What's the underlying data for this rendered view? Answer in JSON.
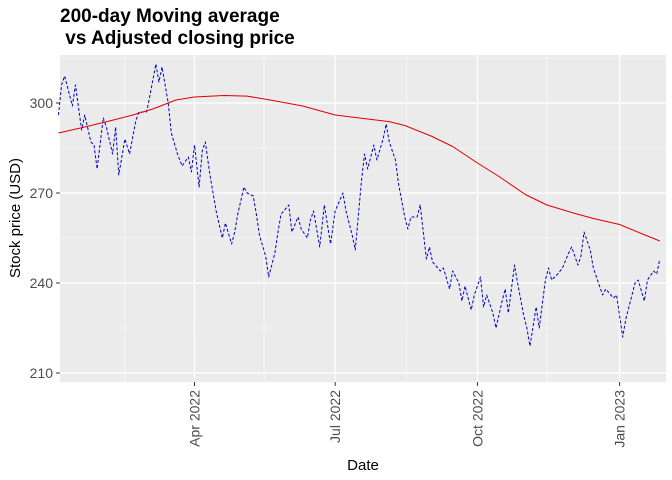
{
  "chart_data": {
    "type": "line",
    "title": "200-day Moving average\n vs Adjusted closing price",
    "xlabel": "Date",
    "ylabel": "Stock price (USD)",
    "xlim": [
      "2022-01-04",
      "2023-01-31"
    ],
    "ylim": [
      207,
      316
    ],
    "y_ticks": [
      210,
      240,
      270,
      300
    ],
    "x_ticks": [
      {
        "date": "2022-04-01",
        "label": "Apr 2022"
      },
      {
        "date": "2022-07-01",
        "label": "Jul 2022"
      },
      {
        "date": "2022-10-01",
        "label": "Oct 2022"
      },
      {
        "date": "2023-01-01",
        "label": "Jan 2023"
      }
    ],
    "x_minor_dates": [
      "2022-02-15",
      "2022-05-16",
      "2022-08-16",
      "2022-11-15"
    ],
    "grid": true,
    "legend": "none",
    "series": [
      {
        "color": "#0000cd",
        "dash": true,
        "points": [
          [
            "2022-01-03",
            296
          ],
          [
            "2022-01-05",
            306
          ],
          [
            "2022-01-07",
            309
          ],
          [
            "2022-01-10",
            303
          ],
          [
            "2022-01-12",
            299
          ],
          [
            "2022-01-14",
            306
          ],
          [
            "2022-01-18",
            291
          ],
          [
            "2022-01-20",
            296
          ],
          [
            "2022-01-24",
            287
          ],
          [
            "2022-01-26",
            286
          ],
          [
            "2022-01-28",
            278
          ],
          [
            "2022-02-01",
            295
          ],
          [
            "2022-02-03",
            292
          ],
          [
            "2022-02-07",
            283
          ],
          [
            "2022-02-09",
            292
          ],
          [
            "2022-02-11",
            276
          ],
          [
            "2022-02-15",
            288
          ],
          [
            "2022-02-18",
            283
          ],
          [
            "2022-02-22",
            294
          ],
          [
            "2022-02-24",
            297
          ],
          [
            "2022-03-01",
            297
          ],
          [
            "2022-03-03",
            302
          ],
          [
            "2022-03-07",
            313
          ],
          [
            "2022-03-09",
            307
          ],
          [
            "2022-03-11",
            312
          ],
          [
            "2022-03-15",
            300
          ],
          [
            "2022-03-17",
            290
          ],
          [
            "2022-03-21",
            283
          ],
          [
            "2022-03-24",
            279
          ],
          [
            "2022-03-28",
            282
          ],
          [
            "2022-03-30",
            277
          ],
          [
            "2022-04-01",
            286
          ],
          [
            "2022-04-04",
            272
          ],
          [
            "2022-04-06",
            284
          ],
          [
            "2022-04-08",
            287
          ],
          [
            "2022-04-11",
            276
          ],
          [
            "2022-04-13",
            270
          ],
          [
            "2022-04-15",
            264
          ],
          [
            "2022-04-19",
            255
          ],
          [
            "2022-04-21",
            260
          ],
          [
            "2022-04-25",
            253
          ],
          [
            "2022-04-27",
            257
          ],
          [
            "2022-04-29",
            263
          ],
          [
            "2022-05-03",
            272
          ],
          [
            "2022-05-05",
            270
          ],
          [
            "2022-05-09",
            269
          ],
          [
            "2022-05-11",
            263
          ],
          [
            "2022-05-13",
            256
          ],
          [
            "2022-05-17",
            249
          ],
          [
            "2022-05-19",
            242
          ],
          [
            "2022-05-23",
            250
          ],
          [
            "2022-05-25",
            257
          ],
          [
            "2022-05-27",
            263
          ],
          [
            "2022-06-01",
            266
          ],
          [
            "2022-06-03",
            257
          ],
          [
            "2022-06-07",
            262
          ],
          [
            "2022-06-09",
            258
          ],
          [
            "2022-06-13",
            255
          ],
          [
            "2022-06-15",
            261
          ],
          [
            "2022-06-17",
            264
          ],
          [
            "2022-06-21",
            252
          ],
          [
            "2022-06-24",
            266
          ],
          [
            "2022-06-28",
            253
          ],
          [
            "2022-07-01",
            264
          ],
          [
            "2022-07-06",
            270
          ],
          [
            "2022-07-08",
            264
          ],
          [
            "2022-07-12",
            256
          ],
          [
            "2022-07-14",
            251
          ],
          [
            "2022-07-18",
            274
          ],
          [
            "2022-07-20",
            283
          ],
          [
            "2022-07-22",
            278
          ],
          [
            "2022-07-26",
            286
          ],
          [
            "2022-07-28",
            281
          ],
          [
            "2022-08-01",
            288
          ],
          [
            "2022-08-03",
            293
          ],
          [
            "2022-08-05",
            287
          ],
          [
            "2022-08-09",
            281
          ],
          [
            "2022-08-11",
            273
          ],
          [
            "2022-08-15",
            262
          ],
          [
            "2022-08-17",
            258
          ],
          [
            "2022-08-19",
            262
          ],
          [
            "2022-08-23",
            262
          ],
          [
            "2022-08-25",
            266
          ],
          [
            "2022-08-29",
            248
          ],
          [
            "2022-08-31",
            252
          ],
          [
            "2022-09-02",
            247
          ],
          [
            "2022-09-07",
            244
          ],
          [
            "2022-09-09",
            245
          ],
          [
            "2022-09-13",
            238
          ],
          [
            "2022-09-15",
            244
          ],
          [
            "2022-09-19",
            240
          ],
          [
            "2022-09-21",
            234
          ],
          [
            "2022-09-23",
            239
          ],
          [
            "2022-09-27",
            231
          ],
          [
            "2022-09-29",
            236
          ],
          [
            "2022-10-03",
            242
          ],
          [
            "2022-10-05",
            232
          ],
          [
            "2022-10-07",
            236
          ],
          [
            "2022-10-11",
            230
          ],
          [
            "2022-10-13",
            225
          ],
          [
            "2022-10-17",
            234
          ],
          [
            "2022-10-19",
            238
          ],
          [
            "2022-10-21",
            230
          ],
          [
            "2022-10-25",
            246
          ],
          [
            "2022-10-27",
            240
          ],
          [
            "2022-10-31",
            229
          ],
          [
            "2022-11-02",
            225
          ],
          [
            "2022-11-04",
            219
          ],
          [
            "2022-11-08",
            232
          ],
          [
            "2022-11-10",
            225
          ],
          [
            "2022-11-14",
            241
          ],
          [
            "2022-11-16",
            245
          ],
          [
            "2022-11-18",
            241
          ],
          [
            "2022-11-22",
            243
          ],
          [
            "2022-11-25",
            245
          ],
          [
            "2022-11-29",
            250
          ],
          [
            "2022-12-01",
            252
          ],
          [
            "2022-12-05",
            246
          ],
          [
            "2022-12-07",
            249
          ],
          [
            "2022-12-09",
            257
          ],
          [
            "2022-12-13",
            251
          ],
          [
            "2022-12-15",
            245
          ],
          [
            "2022-12-19",
            239
          ],
          [
            "2022-12-21",
            236
          ],
          [
            "2022-12-23",
            238
          ],
          [
            "2022-12-28",
            235
          ],
          [
            "2022-12-30",
            236
          ],
          [
            "2023-01-03",
            222
          ],
          [
            "2023-01-05",
            228
          ],
          [
            "2023-01-09",
            236
          ],
          [
            "2023-01-11",
            240
          ],
          [
            "2023-01-13",
            241
          ],
          [
            "2023-01-17",
            234
          ],
          [
            "2023-01-19",
            241
          ],
          [
            "2023-01-23",
            244
          ],
          [
            "2023-01-25",
            243
          ],
          [
            "2023-01-27",
            248
          ]
        ]
      },
      {
        "color": "#e00000",
        "dash": false,
        "points": [
          [
            "2022-01-03",
            290
          ],
          [
            "2022-01-20",
            292
          ],
          [
            "2022-02-05",
            294
          ],
          [
            "2022-02-20",
            296
          ],
          [
            "2022-03-05",
            298
          ],
          [
            "2022-03-20",
            301
          ],
          [
            "2022-04-01",
            302
          ],
          [
            "2022-04-20",
            302.5
          ],
          [
            "2022-05-05",
            302.3
          ],
          [
            "2022-05-20",
            301
          ],
          [
            "2022-06-10",
            299
          ],
          [
            "2022-07-01",
            296
          ],
          [
            "2022-07-20",
            294.8
          ],
          [
            "2022-08-05",
            293.8
          ],
          [
            "2022-08-15",
            292.5
          ],
          [
            "2022-09-01",
            289
          ],
          [
            "2022-09-15",
            285.5
          ],
          [
            "2022-10-01",
            280
          ],
          [
            "2022-10-15",
            275.5
          ],
          [
            "2022-11-01",
            269.5
          ],
          [
            "2022-11-15",
            266
          ],
          [
            "2022-12-01",
            263.5
          ],
          [
            "2022-12-15",
            261.5
          ],
          [
            "2023-01-01",
            259.5
          ],
          [
            "2023-01-15",
            256.5
          ],
          [
            "2023-01-27",
            254
          ]
        ]
      }
    ]
  }
}
